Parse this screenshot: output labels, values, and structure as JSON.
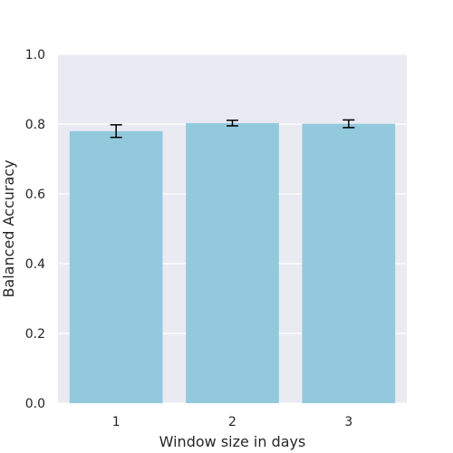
{
  "chart_data": {
    "type": "bar",
    "title": "",
    "xlabel": "Window size in days",
    "ylabel": "Balanced Accuracy",
    "categories": [
      "1",
      "2",
      "3"
    ],
    "values": [
      0.78,
      0.803,
      0.801
    ],
    "error": [
      0.018,
      0.008,
      0.011
    ],
    "ylim": [
      0.0,
      1.0
    ],
    "yticks": [
      "0.0",
      "0.2",
      "0.4",
      "0.6",
      "0.8",
      "1.0"
    ],
    "grid": true,
    "bar_color": "#92c9dd",
    "background_color": "#eaeaf2",
    "grid_color": "#ffffff",
    "errorbar_color": "#000000"
  }
}
